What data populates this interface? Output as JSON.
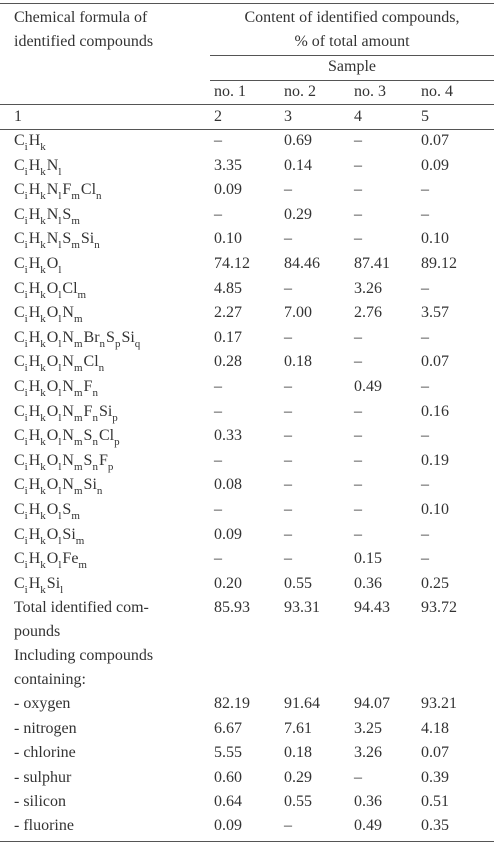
{
  "header": {
    "formula_lines": [
      "Chemical formula of",
      "identified compounds"
    ],
    "content_lines": [
      "Content of identified compounds,",
      "% of total amount"
    ],
    "sample": "Sample",
    "samples": [
      "no. 1",
      "no. 2",
      "no. 3",
      "no. 4"
    ],
    "numbers": [
      "1",
      "2",
      "3",
      "4",
      "5"
    ]
  },
  "formula_rows": [
    {
      "formula": [
        [
          "C",
          "i"
        ],
        [
          "H",
          "k"
        ]
      ],
      "values": [
        "–",
        "0.69",
        "–",
        "0.07"
      ]
    },
    {
      "formula": [
        [
          "C",
          "i"
        ],
        [
          "H",
          "k"
        ],
        [
          "N",
          "l"
        ]
      ],
      "values": [
        "3.35",
        "0.14",
        "–",
        "0.09"
      ]
    },
    {
      "formula": [
        [
          "C",
          "i"
        ],
        [
          "H",
          "k"
        ],
        [
          "N",
          "l"
        ],
        [
          "F",
          "m"
        ],
        [
          "Cl",
          "n"
        ]
      ],
      "values": [
        "0.09",
        "–",
        "–",
        "–"
      ]
    },
    {
      "formula": [
        [
          "C",
          "i"
        ],
        [
          "H",
          "k"
        ],
        [
          "N",
          "l"
        ],
        [
          "S",
          "m"
        ]
      ],
      "values": [
        "–",
        "0.29",
        "–",
        "–"
      ]
    },
    {
      "formula": [
        [
          "C",
          "i"
        ],
        [
          "H",
          "k"
        ],
        [
          "N",
          "l"
        ],
        [
          "S",
          "m"
        ],
        [
          "Si",
          "n"
        ]
      ],
      "values": [
        "0.10",
        "–",
        "–",
        "0.10"
      ]
    },
    {
      "formula": [
        [
          "C",
          "i"
        ],
        [
          "H",
          "k"
        ],
        [
          "O",
          "l"
        ]
      ],
      "values": [
        "74.12",
        "84.46",
        "87.41",
        "89.12"
      ]
    },
    {
      "formula": [
        [
          "C",
          "i"
        ],
        [
          "H",
          "k"
        ],
        [
          "O",
          "l"
        ],
        [
          "Cl",
          "m"
        ]
      ],
      "values": [
        "4.85",
        "–",
        "3.26",
        "–"
      ]
    },
    {
      "formula": [
        [
          "C",
          "i"
        ],
        [
          "H",
          "k"
        ],
        [
          "O",
          "l"
        ],
        [
          "N",
          "m"
        ]
      ],
      "values": [
        "2.27",
        "7.00",
        "2.76",
        "3.57"
      ]
    },
    {
      "formula": [
        [
          "C",
          "i"
        ],
        [
          "H",
          "k"
        ],
        [
          "O",
          "l"
        ],
        [
          "N",
          "m"
        ],
        [
          "Br",
          "n"
        ],
        [
          "S",
          "p"
        ],
        [
          "Si",
          "q"
        ]
      ],
      "values": [
        "0.17",
        "–",
        "–",
        "–"
      ]
    },
    {
      "formula": [
        [
          "C",
          "i"
        ],
        [
          "H",
          "k"
        ],
        [
          "O",
          "l"
        ],
        [
          "N",
          "m"
        ],
        [
          "Cl",
          "n"
        ]
      ],
      "values": [
        "0.28",
        "0.18",
        "–",
        "0.07"
      ]
    },
    {
      "formula": [
        [
          "C",
          "i"
        ],
        [
          "H",
          "k"
        ],
        [
          "O",
          "l"
        ],
        [
          "N",
          "m"
        ],
        [
          "F",
          "n"
        ]
      ],
      "values": [
        "–",
        "–",
        "0.49",
        "–"
      ]
    },
    {
      "formula": [
        [
          "C",
          "i"
        ],
        [
          "H",
          "k"
        ],
        [
          "O",
          "l"
        ],
        [
          "N",
          "m"
        ],
        [
          "F",
          "n"
        ],
        [
          "Si",
          "p"
        ]
      ],
      "values": [
        "–",
        "–",
        "–",
        "0.16"
      ]
    },
    {
      "formula": [
        [
          "C",
          "i"
        ],
        [
          "H",
          "k"
        ],
        [
          "O",
          "l"
        ],
        [
          "N",
          "m"
        ],
        [
          "S",
          "n"
        ],
        [
          "Cl",
          "p"
        ]
      ],
      "values": [
        "0.33",
        "–",
        "–",
        "–"
      ]
    },
    {
      "formula": [
        [
          "C",
          "i"
        ],
        [
          "H",
          "k"
        ],
        [
          "O",
          "l"
        ],
        [
          "N",
          "m"
        ],
        [
          "S",
          "n"
        ],
        [
          "F",
          "p"
        ]
      ],
      "values": [
        "–",
        "–",
        "–",
        "0.19"
      ]
    },
    {
      "formula": [
        [
          "C",
          "i"
        ],
        [
          "H",
          "k"
        ],
        [
          "O",
          "l"
        ],
        [
          "N",
          "m"
        ],
        [
          "Si",
          "n"
        ]
      ],
      "values": [
        "0.08",
        "–",
        "–",
        "–"
      ]
    },
    {
      "formula": [
        [
          "C",
          "i"
        ],
        [
          "H",
          "k"
        ],
        [
          "O",
          "l"
        ],
        [
          "S",
          "m"
        ]
      ],
      "values": [
        "–",
        "–",
        "–",
        "0.10"
      ]
    },
    {
      "formula": [
        [
          "C",
          "i"
        ],
        [
          "H",
          "k"
        ],
        [
          "O",
          "l"
        ],
        [
          "Si",
          "m"
        ]
      ],
      "values": [
        "0.09",
        "–",
        "–",
        "–"
      ]
    },
    {
      "formula": [
        [
          "C",
          "i"
        ],
        [
          "H",
          "k"
        ],
        [
          "O",
          "l"
        ],
        [
          "Fe",
          "m"
        ]
      ],
      "values": [
        "–",
        "–",
        "0.15",
        "–"
      ]
    },
    {
      "formula": [
        [
          "C",
          "i"
        ],
        [
          "H",
          "k"
        ],
        [
          "Si",
          "l"
        ]
      ],
      "values": [
        "0.20",
        "0.55",
        "0.36",
        "0.25"
      ]
    }
  ],
  "total": {
    "label_lines": [
      "Total identified com-",
      "pounds"
    ],
    "values": [
      "85.93",
      "93.31",
      "94.43",
      "93.72"
    ]
  },
  "including_lines": [
    "Including compounds",
    "containing:"
  ],
  "element_rows": [
    {
      "label": "- oxygen",
      "values": [
        "82.19",
        "91.64",
        "94.07",
        "93.21"
      ]
    },
    {
      "label": "- nitrogen",
      "values": [
        "6.67",
        "7.61",
        "3.25",
        "4.18"
      ]
    },
    {
      "label": "- chlorine",
      "values": [
        "5.55",
        "0.18",
        "3.26",
        "0.07"
      ]
    },
    {
      "label": "- sulphur",
      "values": [
        "0.60",
        "0.29",
        "–",
        "0.39"
      ]
    },
    {
      "label": "- silicon",
      "values": [
        "0.64",
        "0.55",
        "0.36",
        "0.51"
      ]
    },
    {
      "label": "- fluorine",
      "values": [
        "0.09",
        "–",
        "0.49",
        "0.35"
      ]
    }
  ]
}
